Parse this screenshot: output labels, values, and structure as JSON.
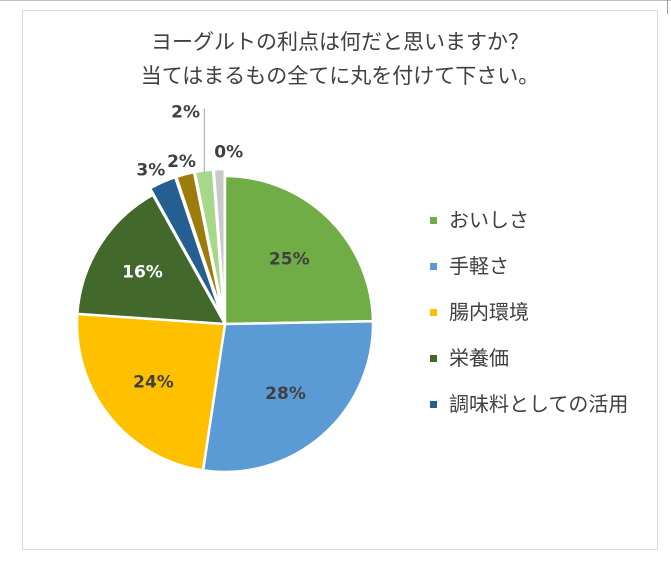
{
  "chart_data": {
    "type": "pie",
    "title": [
      "ヨーグルトの利点は何だと思いますか？",
      "当てはまるもの全てに丸を付けて下さい。"
    ],
    "categories": [
      "おいしさ",
      "手軽さ",
      "腸内環境",
      "栄養価",
      "調味料としての活用"
    ],
    "labels": [
      "25%",
      "28%",
      "24%",
      "16%",
      "3%",
      "2%",
      "2%",
      "0%"
    ],
    "values": [
      25,
      28,
      24,
      16,
      3,
      2,
      2,
      0
    ],
    "colors": [
      "#70ad47",
      "#5b9bd5",
      "#ffc000",
      "#43682b",
      "#255e91",
      "#9e7c0c",
      "#a5d889",
      "#c9c9c9"
    ],
    "legend_position": "right",
    "legend_colors": [
      "#70ad47",
      "#5b9bd5",
      "#ffc000",
      "#43682b",
      "#255e91"
    ]
  }
}
